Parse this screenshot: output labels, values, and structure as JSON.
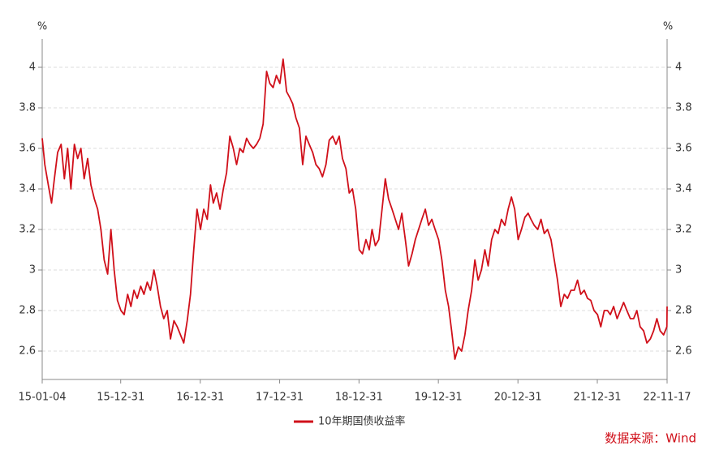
{
  "chart_data": {
    "type": "line",
    "ylabel": "%",
    "y2label": "%",
    "source": "数据来源：Wind",
    "xlim": [
      "15-01-04",
      "22-11-17"
    ],
    "xticks": [
      "15-01-04",
      "15-12-31",
      "16-12-31",
      "17-12-31",
      "18-12-31",
      "19-12-31",
      "20-12-31",
      "21-12-31",
      "22-11-17"
    ],
    "ylim": [
      2.46,
      4.14
    ],
    "yticks": [
      2.6,
      2.8,
      3,
      3.2,
      3.4,
      3.6,
      3.8,
      4
    ],
    "y2lim": [
      2.46,
      4.14
    ],
    "y2ticks": [
      2.6,
      2.8,
      3,
      3.2,
      3.4,
      3.6,
      3.8,
      4
    ],
    "grid": true,
    "x": [
      "15-01-04",
      "15-01-16",
      "15-02-01",
      "15-02-16",
      "15-03-01",
      "15-03-16",
      "15-04-01",
      "15-04-16",
      "15-05-01",
      "15-05-16",
      "15-06-01",
      "15-06-16",
      "15-07-01",
      "15-07-16",
      "15-08-01",
      "15-08-16",
      "15-09-01",
      "15-09-16",
      "15-10-01",
      "15-10-16",
      "15-11-01",
      "15-11-16",
      "15-12-01",
      "15-12-16",
      "16-01-01",
      "16-01-16",
      "16-02-01",
      "16-02-16",
      "16-03-01",
      "16-03-16",
      "16-04-01",
      "16-04-16",
      "16-05-01",
      "16-05-16",
      "16-06-01",
      "16-06-16",
      "16-07-01",
      "16-07-16",
      "16-08-01",
      "16-08-16",
      "16-09-01",
      "16-09-16",
      "16-10-01",
      "16-10-16",
      "16-11-01",
      "16-11-16",
      "16-12-01",
      "16-12-16",
      "17-01-01",
      "17-01-16",
      "17-02-01",
      "17-02-16",
      "17-03-01",
      "17-03-16",
      "17-04-01",
      "17-04-16",
      "17-05-01",
      "17-05-16",
      "17-06-01",
      "17-06-16",
      "17-07-01",
      "17-07-16",
      "17-08-01",
      "17-08-16",
      "17-09-01",
      "17-09-16",
      "17-10-01",
      "17-10-16",
      "17-11-01",
      "17-11-16",
      "17-12-01",
      "17-12-16",
      "18-01-01",
      "18-01-16",
      "18-02-01",
      "18-02-16",
      "18-03-01",
      "18-03-16",
      "18-04-01",
      "18-04-16",
      "18-05-01",
      "18-05-16",
      "18-06-01",
      "18-06-16",
      "18-07-01",
      "18-07-16",
      "18-08-01",
      "18-08-16",
      "18-09-01",
      "18-09-16",
      "18-10-01",
      "18-10-16",
      "18-11-01",
      "18-11-16",
      "18-12-01",
      "18-12-16",
      "19-01-01",
      "19-01-16",
      "19-02-01",
      "19-02-16",
      "19-03-01",
      "19-03-16",
      "19-04-01",
      "19-04-16",
      "19-05-01",
      "19-05-16",
      "19-06-01",
      "19-06-16",
      "19-07-01",
      "19-07-16",
      "19-08-01",
      "19-08-16",
      "19-09-01",
      "19-09-16",
      "19-10-01",
      "19-10-16",
      "19-11-01",
      "19-11-16",
      "19-12-01",
      "19-12-16",
      "20-01-01",
      "20-01-16",
      "20-02-01",
      "20-02-16",
      "20-03-01",
      "20-03-16",
      "20-04-01",
      "20-04-16",
      "20-05-01",
      "20-05-16",
      "20-06-01",
      "20-06-16",
      "20-07-01",
      "20-07-16",
      "20-08-01",
      "20-08-16",
      "20-09-01",
      "20-09-16",
      "20-10-01",
      "20-10-16",
      "20-11-01",
      "20-11-16",
      "20-12-01",
      "20-12-16",
      "21-01-01",
      "21-01-16",
      "21-02-01",
      "21-02-16",
      "21-03-01",
      "21-03-16",
      "21-04-01",
      "21-04-16",
      "21-05-01",
      "21-05-16",
      "21-06-01",
      "21-06-16",
      "21-07-01",
      "21-07-16",
      "21-08-01",
      "21-08-16",
      "21-09-01",
      "21-09-16",
      "21-10-01",
      "21-10-16",
      "21-11-01",
      "21-11-16",
      "21-12-01",
      "21-12-16",
      "22-01-01",
      "22-01-16",
      "22-02-01",
      "22-02-16",
      "22-03-01",
      "22-03-16",
      "22-04-01",
      "22-04-16",
      "22-05-01",
      "22-05-16",
      "22-06-01",
      "22-06-16",
      "22-07-01",
      "22-07-16",
      "22-08-01",
      "22-08-16",
      "22-09-01",
      "22-09-16",
      "22-10-01",
      "22-10-16",
      "22-11-01",
      "22-11-16",
      "22-11-17"
    ],
    "series": [
      {
        "name": "10年期国债收益率",
        "color": "#d0101a",
        "values": [
          3.65,
          3.52,
          3.42,
          3.33,
          3.45,
          3.58,
          3.62,
          3.45,
          3.6,
          3.4,
          3.62,
          3.55,
          3.6,
          3.45,
          3.55,
          3.42,
          3.35,
          3.3,
          3.2,
          3.05,
          2.98,
          3.2,
          3.0,
          2.85,
          2.8,
          2.78,
          2.88,
          2.82,
          2.9,
          2.86,
          2.92,
          2.88,
          2.94,
          2.9,
          3.0,
          2.92,
          2.82,
          2.76,
          2.8,
          2.66,
          2.75,
          2.72,
          2.68,
          2.64,
          2.75,
          2.88,
          3.1,
          3.3,
          3.2,
          3.3,
          3.25,
          3.42,
          3.33,
          3.38,
          3.3,
          3.4,
          3.48,
          3.66,
          3.6,
          3.52,
          3.6,
          3.58,
          3.65,
          3.62,
          3.6,
          3.62,
          3.65,
          3.72,
          3.98,
          3.92,
          3.9,
          3.96,
          3.92,
          4.04,
          3.88,
          3.85,
          3.82,
          3.75,
          3.7,
          3.52,
          3.66,
          3.62,
          3.58,
          3.52,
          3.5,
          3.46,
          3.52,
          3.64,
          3.66,
          3.62,
          3.66,
          3.55,
          3.5,
          3.38,
          3.4,
          3.3,
          3.1,
          3.08,
          3.15,
          3.1,
          3.2,
          3.12,
          3.15,
          3.3,
          3.45,
          3.35,
          3.3,
          3.25,
          3.2,
          3.28,
          3.15,
          3.02,
          3.08,
          3.15,
          3.2,
          3.25,
          3.3,
          3.22,
          3.25,
          3.2,
          3.15,
          3.05,
          2.9,
          2.82,
          2.7,
          2.56,
          2.62,
          2.6,
          2.68,
          2.8,
          2.9,
          3.05,
          2.95,
          3.0,
          3.1,
          3.02,
          3.15,
          3.2,
          3.18,
          3.25,
          3.22,
          3.3,
          3.36,
          3.3,
          3.15,
          3.2,
          3.26,
          3.28,
          3.25,
          3.22,
          3.2,
          3.25,
          3.18,
          3.2,
          3.15,
          3.05,
          2.95,
          2.82,
          2.88,
          2.86,
          2.9,
          2.9,
          2.95,
          2.88,
          2.9,
          2.86,
          2.85,
          2.8,
          2.78,
          2.72,
          2.8,
          2.8,
          2.78,
          2.82,
          2.76,
          2.8,
          2.84,
          2.8,
          2.76,
          2.76,
          2.8,
          2.72,
          2.7,
          2.64,
          2.66,
          2.7,
          2.76,
          2.7,
          2.68,
          2.72,
          2.82
        ]
      }
    ]
  }
}
